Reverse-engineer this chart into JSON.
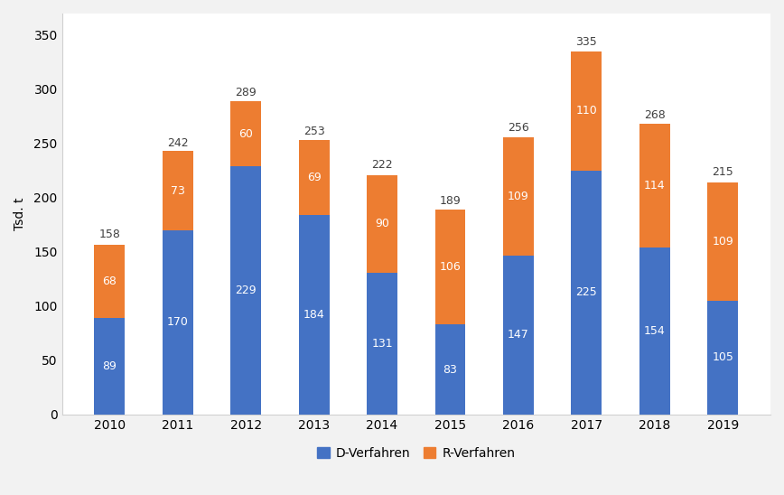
{
  "years": [
    2010,
    2011,
    2012,
    2013,
    2014,
    2015,
    2016,
    2017,
    2018,
    2019
  ],
  "d_values": [
    89,
    170,
    229,
    184,
    131,
    83,
    147,
    225,
    154,
    105
  ],
  "r_values": [
    68,
    73,
    60,
    69,
    90,
    106,
    109,
    110,
    114,
    109
  ],
  "totals": [
    158,
    242,
    289,
    253,
    222,
    189,
    256,
    335,
    268,
    215
  ],
  "d_color": "#4472C4",
  "r_color": "#ED7D31",
  "ylabel": "Tsd. t",
  "ylim": [
    0,
    370
  ],
  "yticks": [
    0,
    50,
    100,
    150,
    200,
    250,
    300,
    350
  ],
  "legend_labels": [
    "D-Verfahren",
    "R-Verfahren"
  ],
  "bar_width": 0.45,
  "background_color": "#f2f2f2",
  "plot_bg_color": "#ffffff",
  "grid_color": "#ffffff",
  "label_color_d": "#ffffff",
  "label_color_r": "#ffffff",
  "total_label_color": "#404040",
  "tick_label_fontsize": 10,
  "axis_label_fontsize": 10,
  "bar_label_fontsize": 9,
  "total_label_fontsize": 9
}
